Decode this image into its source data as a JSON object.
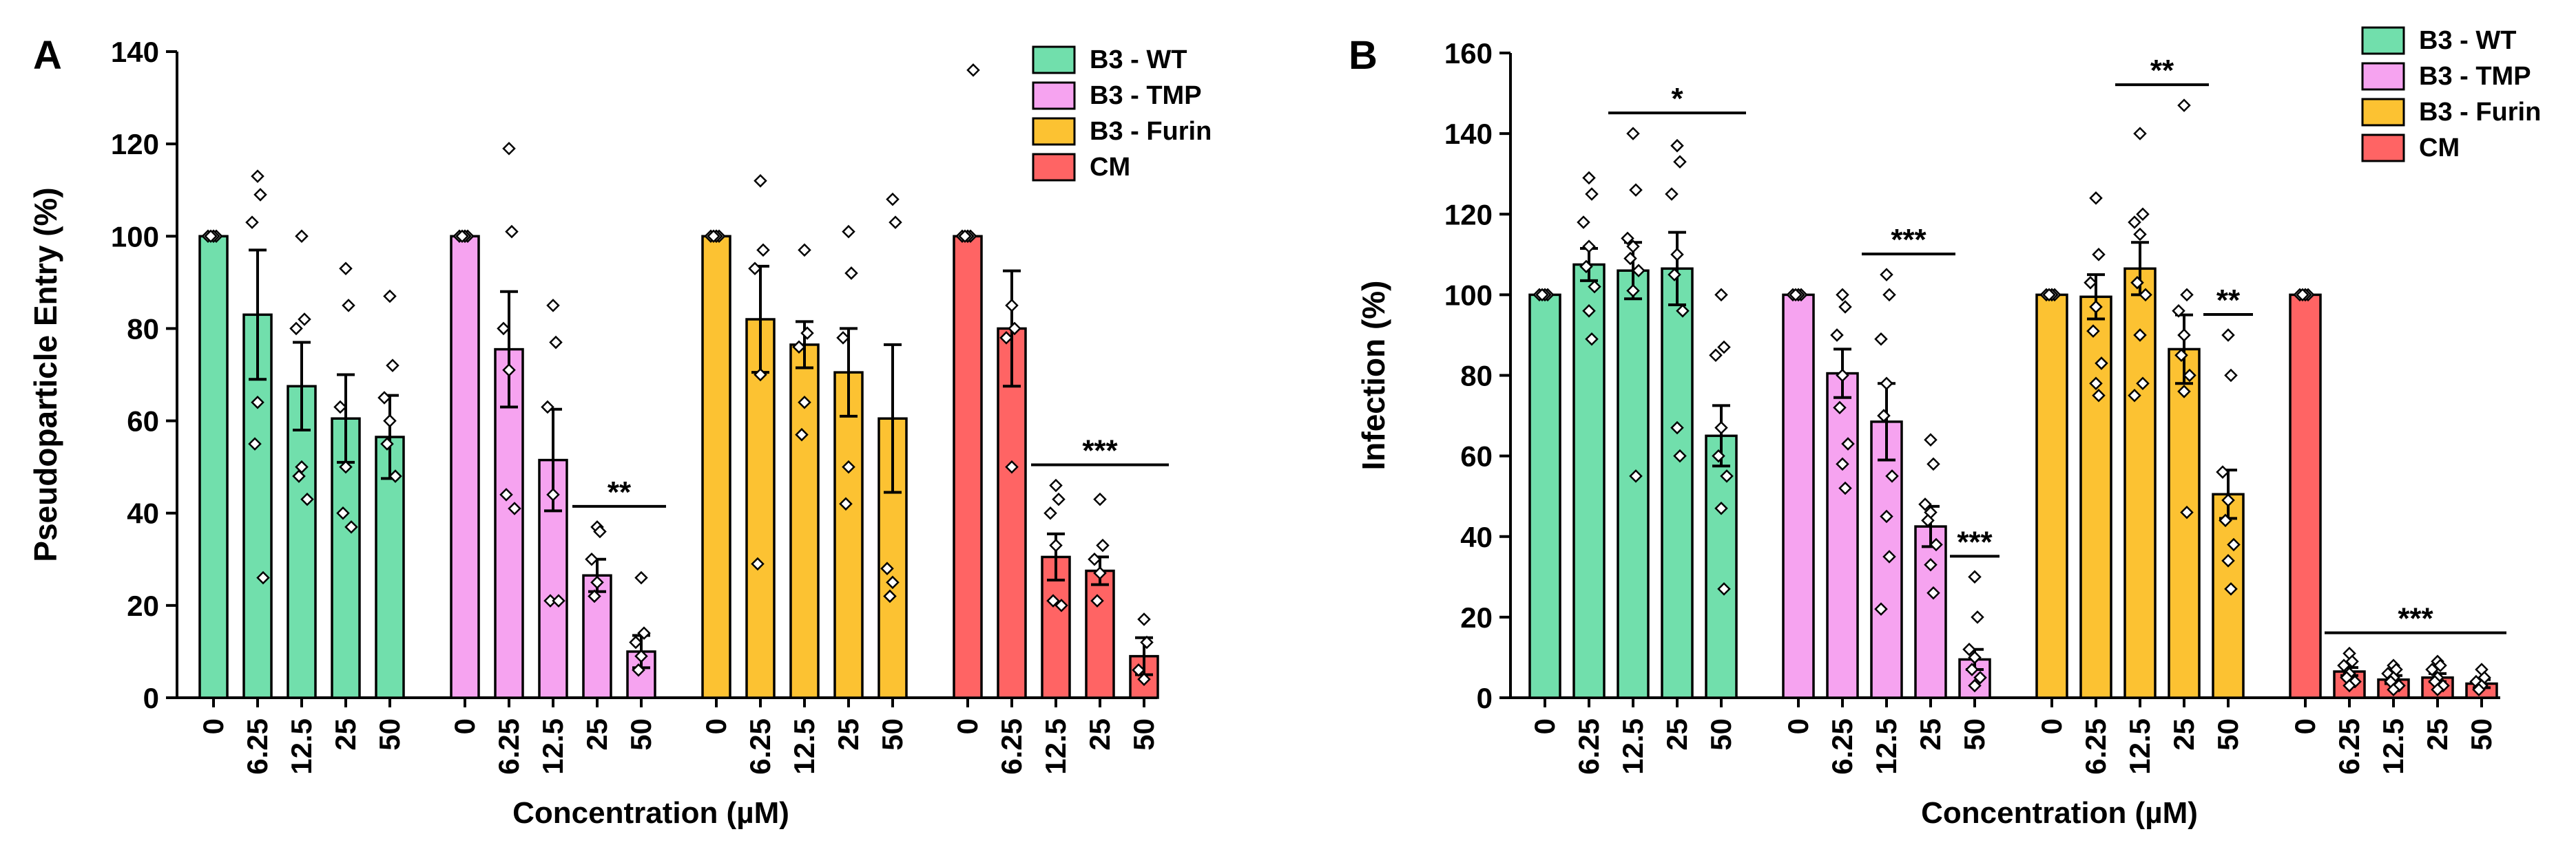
{
  "chart_data": [
    {
      "panel_label": "A",
      "type": "bar",
      "ylabel": "Pseudoparticle Entry (%)",
      "xlabel": "Concentration (µM)",
      "ylim": [
        0,
        140
      ],
      "yticks": [
        0,
        20,
        40,
        60,
        80,
        100,
        120,
        140
      ],
      "categories": [
        "0",
        "6.25",
        "12.5",
        "25",
        "50"
      ],
      "series": [
        {
          "name": "B3 - WT",
          "color": "#71DFAC",
          "values": [
            100,
            83,
            67.5,
            60.5,
            56.5
          ],
          "errors": [
            0,
            14,
            9.5,
            9.5,
            9
          ],
          "points": [
            [
              100,
              100,
              100,
              100,
              100
            ],
            [
              113,
              109,
              103,
              64,
              55,
              26
            ],
            [
              100,
              82,
              80,
              50,
              48,
              43
            ],
            [
              93,
              85,
              63,
              50,
              40,
              37
            ],
            [
              87,
              72,
              65,
              60,
              55,
              48
            ]
          ]
        },
        {
          "name": "B3 - TMP",
          "color": "#F6A3F0",
          "values": [
            100,
            75.5,
            51.5,
            26.5,
            10
          ],
          "errors": [
            0,
            12.5,
            11,
            3.5,
            3.5
          ],
          "points": [
            [
              100,
              100,
              100,
              100,
              100
            ],
            [
              119,
              101,
              80,
              71,
              44,
              41
            ],
            [
              85,
              77,
              63,
              44,
              21,
              21
            ],
            [
              37,
              36,
              30,
              25,
              22
            ],
            [
              26,
              14,
              12,
              9,
              6
            ]
          ]
        },
        {
          "name": "B3 - Furin",
          "color": "#FCC232",
          "values": [
            100,
            82,
            76.5,
            70.5,
            60.5
          ],
          "errors": [
            0,
            11.5,
            5,
            9.5,
            16
          ],
          "points": [
            [
              100,
              100,
              100,
              100,
              100
            ],
            [
              112,
              97,
              93,
              70,
              29
            ],
            [
              97,
              79,
              76,
              64,
              57
            ],
            [
              101,
              92,
              78,
              50,
              42
            ],
            [
              108,
              103,
              28,
              25,
              22
            ]
          ]
        },
        {
          "name": "CM",
          "color": "#FF6464",
          "values": [
            100,
            80,
            30.5,
            27.5,
            9
          ],
          "errors": [
            0,
            12.5,
            5,
            3,
            4
          ],
          "points": [
            [
              100,
              100,
              100,
              100,
              100,
              136
            ],
            [
              85,
              80,
              78,
              50
            ],
            [
              46,
              43,
              40,
              33,
              21,
              20
            ],
            [
              43,
              33,
              30,
              27,
              21
            ],
            [
              17,
              12,
              6,
              4
            ]
          ]
        }
      ],
      "significance": [
        {
          "label": "**",
          "group": "B3 - TMP",
          "from": "25",
          "to": "50"
        },
        {
          "label": "***",
          "group": "CM",
          "from": "12.5",
          "to": "50"
        }
      ]
    },
    {
      "panel_label": "B",
      "type": "bar",
      "ylabel": "Infection (%)",
      "xlabel": "Concentration (µM)",
      "ylim": [
        0,
        160
      ],
      "yticks": [
        0,
        20,
        40,
        60,
        80,
        100,
        120,
        140,
        160
      ],
      "categories": [
        "0",
        "6.25",
        "12.5",
        "25",
        "50"
      ],
      "series": [
        {
          "name": "B3 - WT",
          "color": "#71DFAC",
          "values": [
            100,
            107.5,
            106,
            106.5,
            65
          ],
          "errors": [
            0,
            4,
            7,
            9,
            7.5
          ],
          "points": [
            [
              100,
              100,
              100,
              100,
              100
            ],
            [
              129,
              125,
              118,
              112,
              107,
              102,
              96,
              89
            ],
            [
              140,
              126,
              114,
              112,
              109,
              106,
              101,
              55
            ],
            [
              137,
              133,
              125,
              110,
              105,
              96,
              67,
              60
            ],
            [
              100,
              87,
              85,
              67,
              60,
              55,
              47,
              27
            ]
          ]
        },
        {
          "name": "B3 - TMP",
          "color": "#F6A3F0",
          "values": [
            100,
            80.5,
            68.5,
            42.5,
            9.5
          ],
          "errors": [
            0,
            6,
            9.5,
            5,
            2.5
          ],
          "points": [
            [
              100,
              100,
              100,
              100,
              100
            ],
            [
              100,
              97,
              90,
              80,
              72,
              63,
              58,
              52
            ],
            [
              105,
              100,
              89,
              78,
              70,
              55,
              45,
              35,
              22
            ],
            [
              64,
              58,
              48,
              46,
              44,
              38,
              33,
              26
            ],
            [
              30,
              20,
              12,
              10,
              7,
              5,
              3
            ]
          ]
        },
        {
          "name": "B3 - Furin",
          "color": "#FCC232",
          "values": [
            100,
            99.5,
            106.5,
            86.5,
            50.5
          ],
          "errors": [
            0,
            5.5,
            6.5,
            8.5,
            6
          ],
          "points": [
            [
              100,
              100,
              100,
              100,
              100
            ],
            [
              124,
              110,
              103,
              97,
              91,
              83,
              78,
              75
            ],
            [
              140,
              120,
              118,
              115,
              103,
              100,
              90,
              78,
              75
            ],
            [
              147,
              100,
              96,
              90,
              85,
              80,
              76,
              46
            ],
            [
              90,
              80,
              56,
              49,
              44,
              38,
              34,
              27
            ]
          ]
        },
        {
          "name": "CM",
          "color": "#FF6464",
          "values": [
            100,
            6.5,
            4.5,
            5,
            3.5
          ],
          "errors": [
            0,
            1,
            1,
            1,
            1
          ],
          "points": [
            [
              100,
              100,
              100,
              100,
              100
            ],
            [
              11,
              9,
              8,
              6,
              5,
              4,
              3
            ],
            [
              8,
              7,
              6,
              5,
              4,
              3,
              2
            ],
            [
              9,
              8,
              7,
              5,
              4,
              3,
              2
            ],
            [
              7,
              5,
              4,
              3,
              2
            ]
          ]
        }
      ],
      "significance": [
        {
          "label": "*",
          "group": "B3 - WT",
          "from": "12.5",
          "to": "50"
        },
        {
          "label": "***",
          "group": "B3 - TMP",
          "from": "12.5",
          "to": "25"
        },
        {
          "label": "***",
          "group": "B3 - TMP",
          "from": "50",
          "to": "50"
        },
        {
          "label": "**",
          "group": "B3 - Furin",
          "from": "12.5",
          "to": "25"
        },
        {
          "label": "**",
          "group": "B3 - Furin",
          "from": "50",
          "to": "50"
        },
        {
          "label": "***",
          "group": "CM",
          "from": "6.25",
          "to": "50"
        }
      ]
    }
  ]
}
